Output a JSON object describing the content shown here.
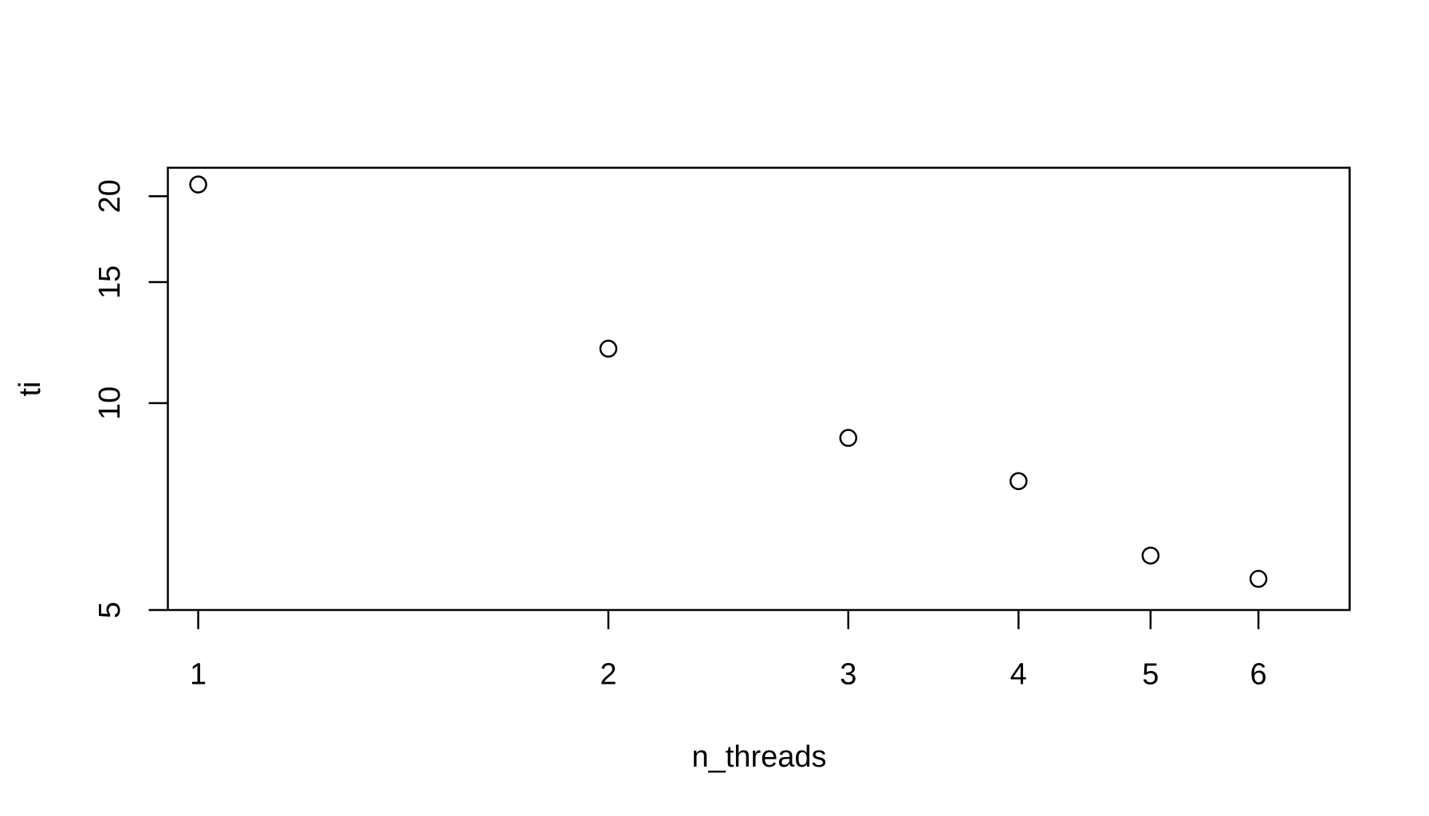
{
  "chart_data": {
    "type": "scatter",
    "title": "",
    "xlabel": "n_threads",
    "ylabel": "ti",
    "x_scale": "log",
    "y_scale": "log",
    "xlim": [
      0.95,
      7.0
    ],
    "ylim": [
      5.0,
      22.0
    ],
    "xticks": [
      1,
      2,
      3,
      4,
      5,
      6
    ],
    "xtick_labels": [
      "1",
      "2",
      "3",
      "4",
      "5",
      "6"
    ],
    "yticks": [
      5,
      10,
      15,
      20
    ],
    "ytick_labels": [
      "5",
      "10",
      "15",
      "20"
    ],
    "grid": false,
    "marker": "open-circle",
    "color": "#000000",
    "points": [
      {
        "x": 1,
        "y": 20.8
      },
      {
        "x": 2,
        "y": 12.0
      },
      {
        "x": 3,
        "y": 8.9
      },
      {
        "x": 4,
        "y": 7.7
      },
      {
        "x": 5,
        "y": 6.0
      },
      {
        "x": 6,
        "y": 5.55
      }
    ]
  }
}
